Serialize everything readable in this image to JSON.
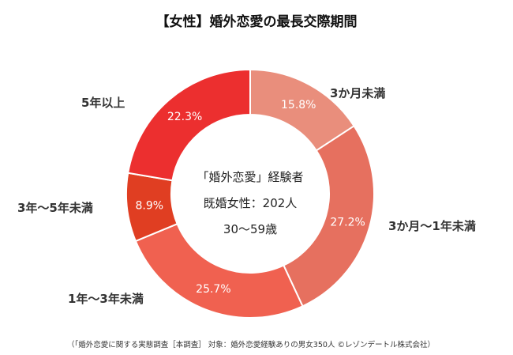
{
  "chart_data": {
    "type": "pie",
    "title": "【女性】婚外恋愛の最長交際期間",
    "center_text": [
      "「婚外恋愛」経験者",
      "既婚女性：202人",
      "30～59歳"
    ],
    "categories": [
      "3か月未満",
      "3か月～1年未満",
      "1年～3年未満",
      "3年～5年未満",
      "5年以上"
    ],
    "values": [
      15.8,
      27.2,
      25.7,
      8.9,
      22.3
    ],
    "value_labels": [
      "15.8%",
      "27.2%",
      "25.7%",
      "8.9%",
      "22.3%"
    ],
    "colors": [
      "#e98e7c",
      "#e6705f",
      "#f06150",
      "#e03e22",
      "#ec2f2f"
    ],
    "donut": true,
    "start_angle": "top",
    "direction": "clockwise",
    "source": "（「婚外恋愛に関する実態調査［本調査］ 対象：婚外恋愛経験ありの男女350人 ©レゾンデートル株式会社）"
  }
}
